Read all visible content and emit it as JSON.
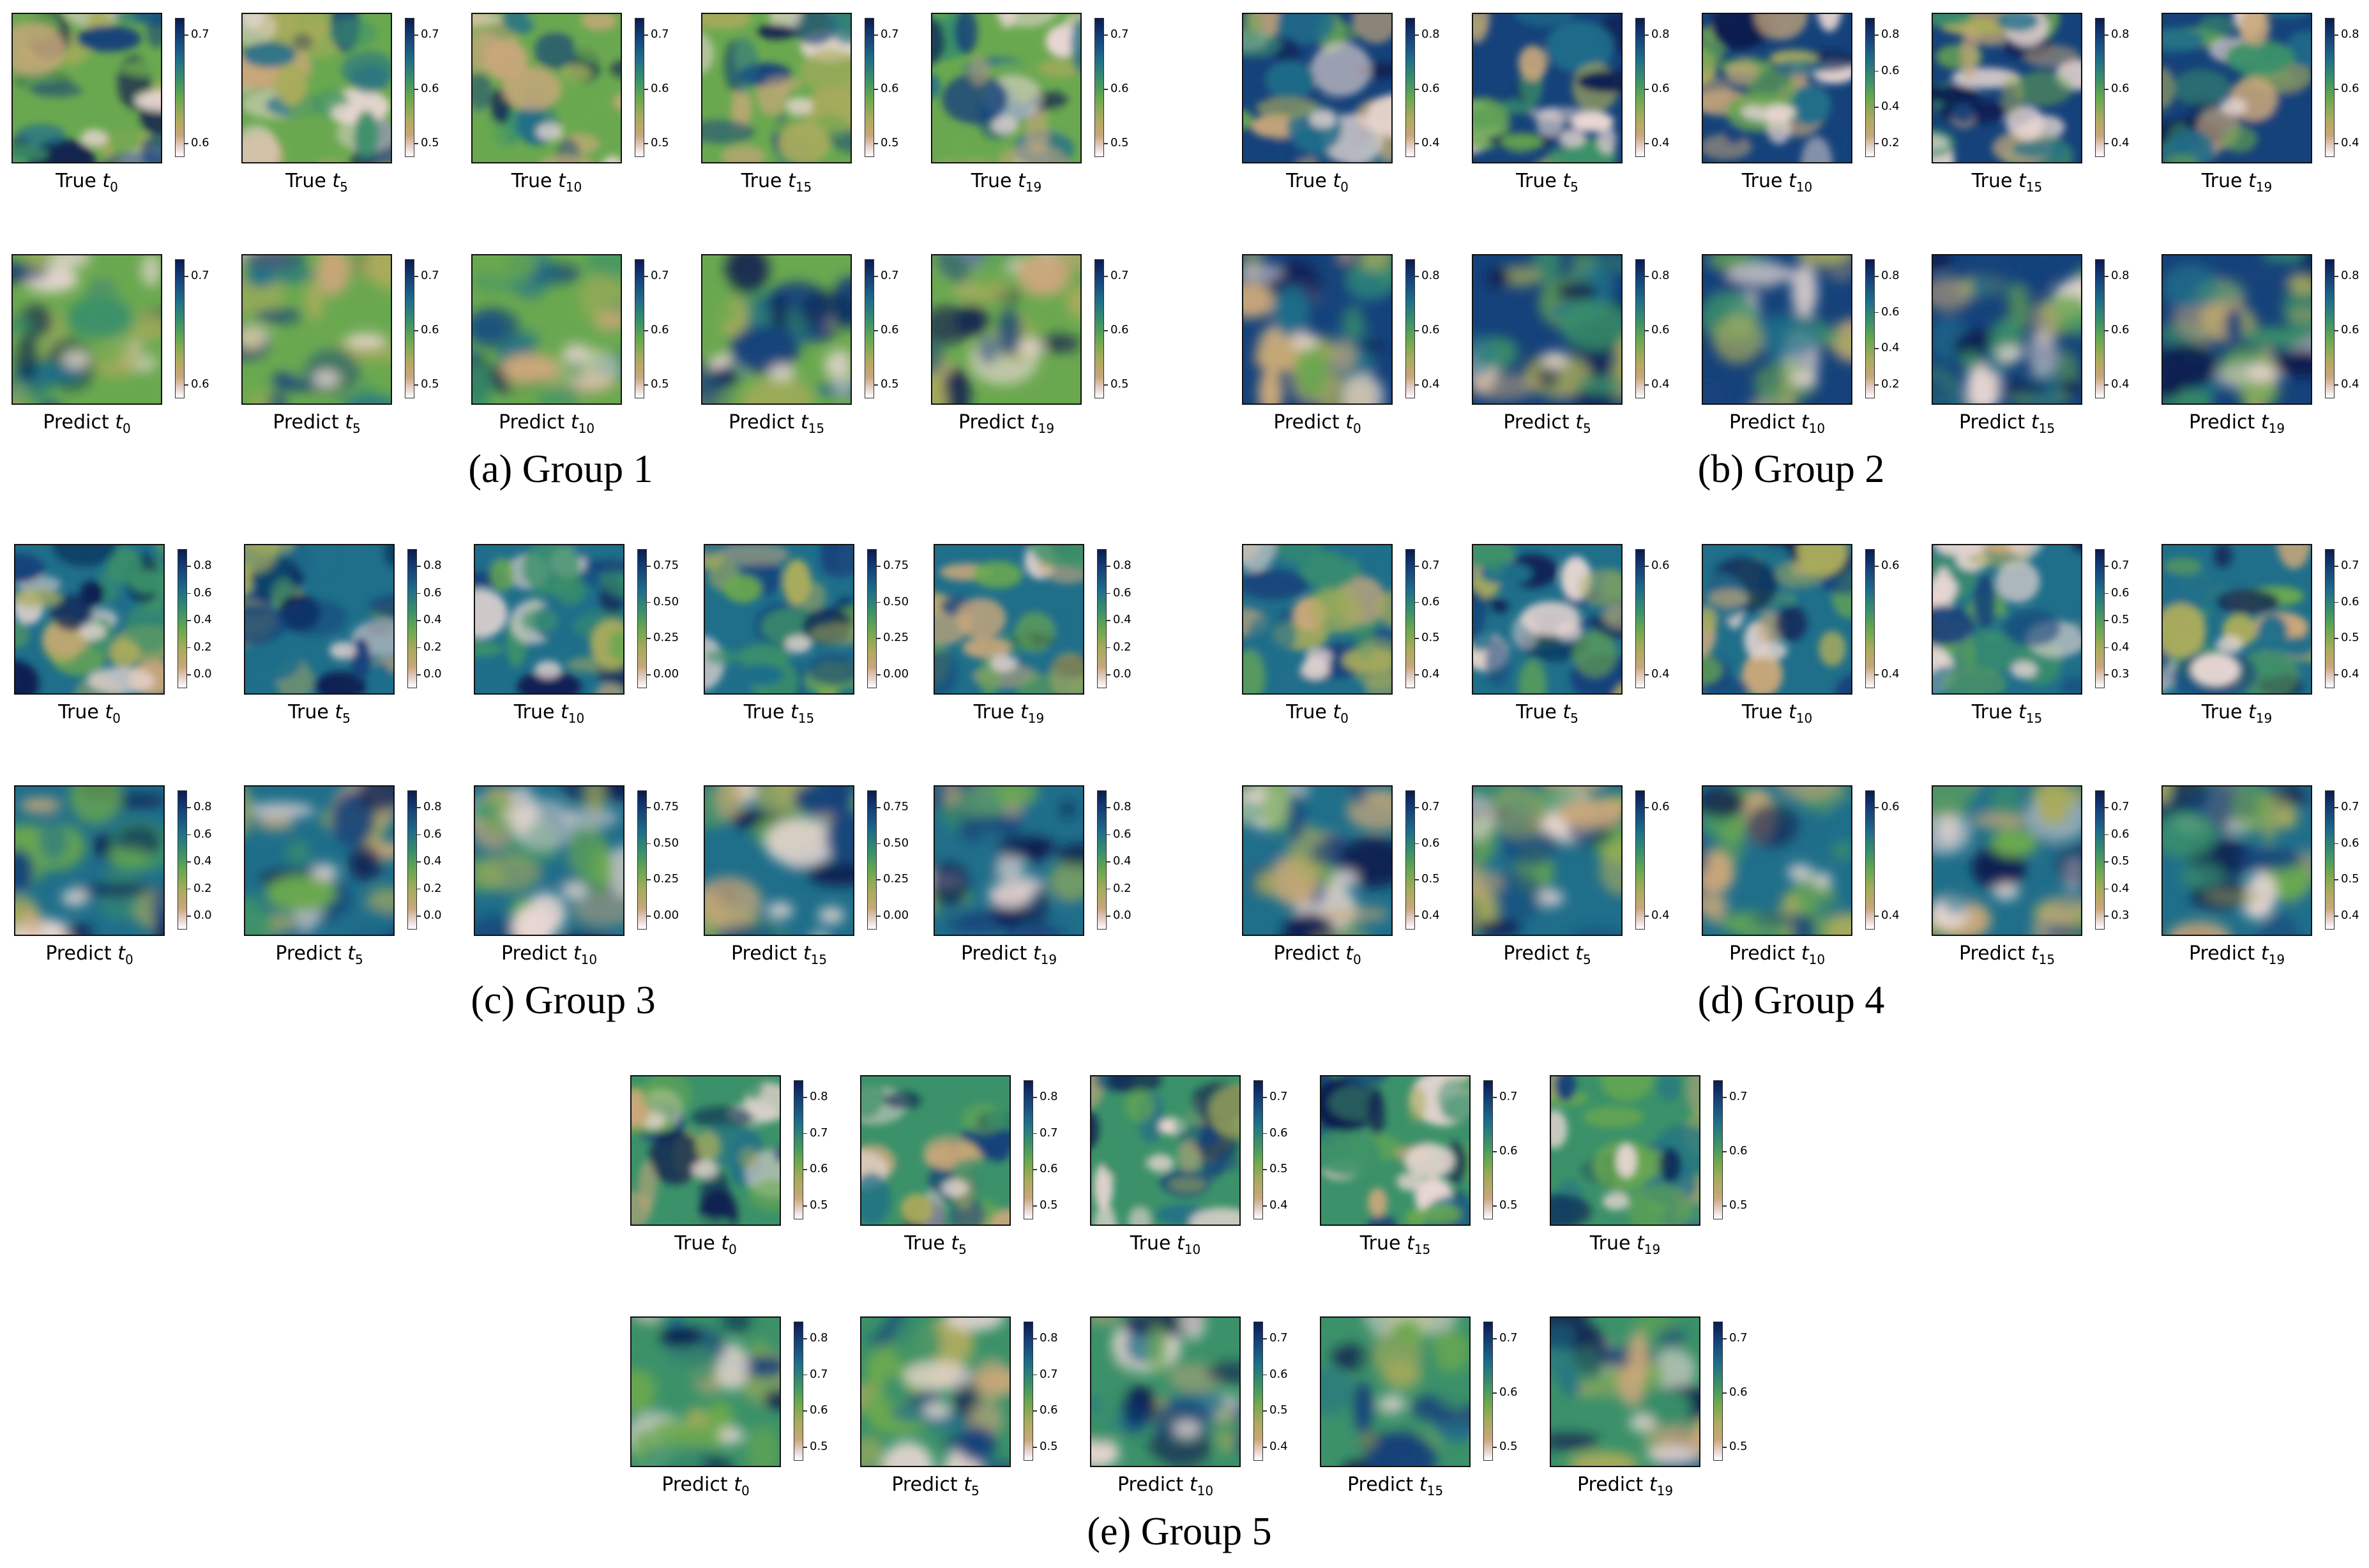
{
  "groups": [
    {
      "caption": "(a) Group 1",
      "true_ticks": [
        [
          "0.7",
          "0.6"
        ],
        [
          "0.7",
          "0.6",
          "0.5"
        ],
        [
          "0.7",
          "0.6",
          "0.5"
        ],
        [
          "0.7",
          "0.6",
          "0.5"
        ],
        [
          "0.7",
          "0.6",
          "0.5"
        ]
      ],
      "pred_ticks": [
        [
          "0.7",
          "0.6"
        ],
        [
          "0.7",
          "0.6",
          "0.5"
        ],
        [
          "0.7",
          "0.6",
          "0.5"
        ],
        [
          "0.7",
          "0.6",
          "0.5"
        ],
        [
          "0.7",
          "0.6",
          "0.5"
        ]
      ]
    },
    {
      "caption": "(b) Group 2",
      "true_ticks": [
        [
          "0.8",
          "0.6",
          "0.4"
        ],
        [
          "0.8",
          "0.6",
          "0.4"
        ],
        [
          "0.8",
          "0.6",
          "0.4",
          "0.2"
        ],
        [
          "0.8",
          "0.6",
          "0.4"
        ],
        [
          "0.8",
          "0.6",
          "0.4"
        ]
      ],
      "pred_ticks": [
        [
          "0.8",
          "0.6",
          "0.4"
        ],
        [
          "0.8",
          "0.6",
          "0.4"
        ],
        [
          "0.8",
          "0.6",
          "0.4",
          "0.2"
        ],
        [
          "0.8",
          "0.6",
          "0.4"
        ],
        [
          "0.8",
          "0.6",
          "0.4"
        ]
      ]
    },
    {
      "caption": "(c) Group 3",
      "true_ticks": [
        [
          "0.8",
          "0.6",
          "0.4",
          "0.2",
          "0.0"
        ],
        [
          "0.8",
          "0.6",
          "0.4",
          "0.2",
          "0.0"
        ],
        [
          "0.75",
          "0.50",
          "0.25",
          "0.00"
        ],
        [
          "0.75",
          "0.50",
          "0.25",
          "0.00"
        ],
        [
          "0.8",
          "0.6",
          "0.4",
          "0.2",
          "0.0"
        ]
      ],
      "pred_ticks": [
        [
          "0.8",
          "0.6",
          "0.4",
          "0.2",
          "0.0"
        ],
        [
          "0.8",
          "0.6",
          "0.4",
          "0.2",
          "0.0"
        ],
        [
          "0.75",
          "0.50",
          "0.25",
          "0.00"
        ],
        [
          "0.75",
          "0.50",
          "0.25",
          "0.00"
        ],
        [
          "0.8",
          "0.6",
          "0.4",
          "0.2",
          "0.0"
        ]
      ]
    },
    {
      "caption": "(d) Group 4",
      "true_ticks": [
        [
          "0.7",
          "0.6",
          "0.5",
          "0.4"
        ],
        [
          "0.6",
          "0.4"
        ],
        [
          "0.6",
          "0.4"
        ],
        [
          "0.7",
          "0.6",
          "0.5",
          "0.4",
          "0.3"
        ],
        [
          "0.7",
          "0.6",
          "0.5",
          "0.4"
        ]
      ],
      "pred_ticks": [
        [
          "0.7",
          "0.6",
          "0.5",
          "0.4"
        ],
        [
          "0.6",
          "0.4"
        ],
        [
          "0.6",
          "0.4"
        ],
        [
          "0.7",
          "0.6",
          "0.5",
          "0.4",
          "0.3"
        ],
        [
          "0.7",
          "0.6",
          "0.5",
          "0.4"
        ]
      ]
    },
    {
      "caption": "(e) Group 5",
      "true_ticks": [
        [
          "0.8",
          "0.7",
          "0.6",
          "0.5"
        ],
        [
          "0.8",
          "0.7",
          "0.6",
          "0.5"
        ],
        [
          "0.7",
          "0.6",
          "0.5",
          "0.4"
        ],
        [
          "0.7",
          "0.6",
          "0.5"
        ],
        [
          "0.7",
          "0.6",
          "0.5"
        ]
      ],
      "pred_ticks": [
        [
          "0.8",
          "0.7",
          "0.6",
          "0.5"
        ],
        [
          "0.8",
          "0.7",
          "0.6",
          "0.5"
        ],
        [
          "0.7",
          "0.6",
          "0.5",
          "0.4"
        ],
        [
          "0.7",
          "0.6",
          "0.5"
        ],
        [
          "0.7",
          "0.6",
          "0.5"
        ]
      ]
    }
  ],
  "label_true": "True",
  "label_predict": "Predict",
  "timesteps": [
    "0",
    "5",
    "10",
    "15",
    "19"
  ],
  "colormap": [
    "#0b1b4f",
    "#15427a",
    "#1f6e8a",
    "#3b9169",
    "#6aa84f",
    "#a9ab5c",
    "#c9a77a",
    "#e8d6d2",
    "#ffffff"
  ]
}
